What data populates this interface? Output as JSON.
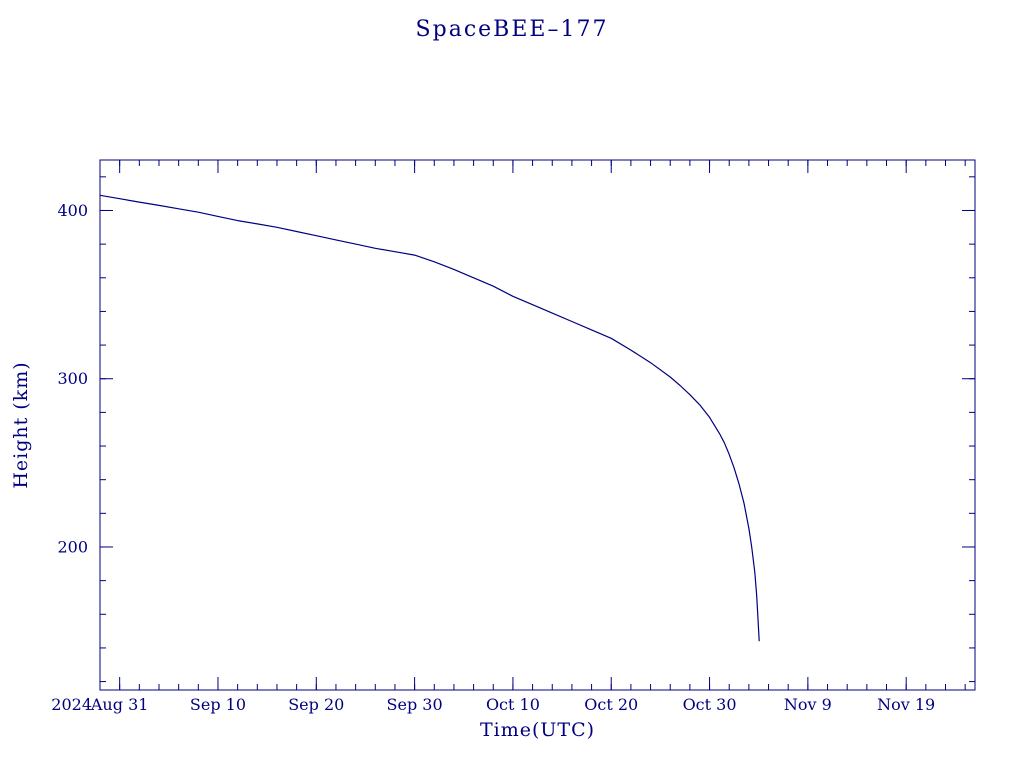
{
  "colors": {
    "line": "#000080",
    "text": "#000080",
    "frame": "#000080",
    "background": "#ffffff"
  },
  "chart_data": {
    "type": "line",
    "title": "SpaceBEE–177",
    "xlabel": "Time(UTC)",
    "ylabel": "Height (km)",
    "year_label": "2024",
    "x_unit": "days, 0 = 2024 Aug 29",
    "xlim": [
      0,
      89
    ],
    "ylim": [
      115,
      430
    ],
    "grid": false,
    "legend": false,
    "x_ticks": [
      {
        "t": 2,
        "label": "Aug 31"
      },
      {
        "t": 12,
        "label": "Sep 10"
      },
      {
        "t": 22,
        "label": "Sep 20"
      },
      {
        "t": 32,
        "label": "Sep 30"
      },
      {
        "t": 42,
        "label": "Oct 10"
      },
      {
        "t": 52,
        "label": "Oct 20"
      },
      {
        "t": 62,
        "label": "Oct 30"
      },
      {
        "t": 72,
        "label": "Nov 9"
      },
      {
        "t": 82,
        "label": "Nov 19"
      }
    ],
    "x_minor_step": 2,
    "y_ticks": [
      {
        "v": 200,
        "label": "200"
      },
      {
        "v": 300,
        "label": "300"
      },
      {
        "v": 400,
        "label": "400"
      }
    ],
    "y_minor_step": 20,
    "series": [
      {
        "name": "height_km",
        "points": [
          [
            0,
            409
          ],
          [
            2,
            407
          ],
          [
            4,
            405
          ],
          [
            6,
            403
          ],
          [
            8,
            401
          ],
          [
            10,
            399
          ],
          [
            12,
            396.5
          ],
          [
            14,
            394
          ],
          [
            16,
            392
          ],
          [
            18,
            390
          ],
          [
            20,
            387.5
          ],
          [
            22,
            385
          ],
          [
            24,
            382.5
          ],
          [
            26,
            380
          ],
          [
            28,
            377.5
          ],
          [
            30,
            375.5
          ],
          [
            32,
            373.5
          ],
          [
            34,
            369.5
          ],
          [
            36,
            365
          ],
          [
            38,
            360
          ],
          [
            40,
            355
          ],
          [
            42,
            349
          ],
          [
            44,
            344
          ],
          [
            46,
            339
          ],
          [
            48,
            334
          ],
          [
            50,
            329
          ],
          [
            52,
            324
          ],
          [
            54,
            317
          ],
          [
            56,
            309.5
          ],
          [
            58,
            301
          ],
          [
            59,
            296
          ],
          [
            60,
            290.5
          ],
          [
            61,
            284.5
          ],
          [
            62,
            277
          ],
          [
            63,
            267.5
          ],
          [
            63.5,
            262
          ],
          [
            64,
            255
          ],
          [
            64.5,
            247
          ],
          [
            65,
            237.5
          ],
          [
            65.5,
            226
          ],
          [
            66,
            211
          ],
          [
            66.3,
            199.5
          ],
          [
            66.6,
            185
          ],
          [
            66.8,
            171
          ],
          [
            66.95,
            155
          ],
          [
            67.05,
            144
          ]
        ]
      }
    ]
  }
}
